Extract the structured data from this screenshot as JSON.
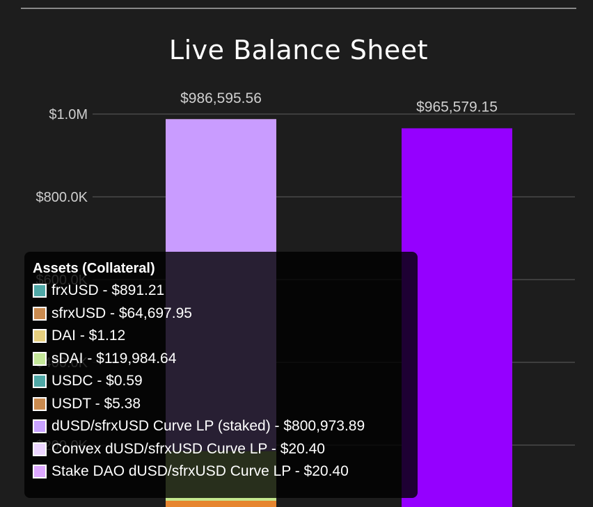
{
  "chart_data": {
    "type": "bar",
    "title": "Live Balance Sheet",
    "yticks": [
      "$1.0M",
      "$800.0K",
      "$600.0K",
      "$400.0K",
      "$200.0K"
    ],
    "ytick_values": [
      1000000,
      800000,
      600000,
      400000,
      200000
    ],
    "ylim": [
      0,
      1000000
    ],
    "grid": true,
    "bars": [
      {
        "total_label": "$986,595.56",
        "total": 986595.56,
        "stack": [
          {
            "name": "frxUSD",
            "value": 891.21,
            "color": "#4bbfbf"
          },
          {
            "name": "sfrxUSD",
            "value": 64697.95,
            "color": "#e6852f"
          },
          {
            "name": "DAI",
            "value": 1.12,
            "color": "#ebcd7a"
          },
          {
            "name": "sDAI",
            "value": 119984.64,
            "color": "#c5e88e"
          },
          {
            "name": "USDC",
            "value": 0.59,
            "color": "#4bbfbf"
          },
          {
            "name": "USDT",
            "value": 5.38,
            "color": "#e6852f"
          },
          {
            "name": "dUSD/sfrxUSD Curve LP (staked)",
            "value": 800973.89,
            "color": "#c99cff"
          },
          {
            "name": "Convex dUSD/sfrxUSD Curve LP",
            "value": 20.4,
            "color": "#edd6ff"
          },
          {
            "name": "Stake DAO dUSD/sfrxUSD Curve LP",
            "value": 20.4,
            "color": "#dfa5ff"
          }
        ]
      },
      {
        "total_label": "$965,579.15",
        "total": 965579.15,
        "stack": [
          {
            "name": "",
            "value": 965579.15,
            "color": "#9500ff"
          }
        ]
      }
    ]
  },
  "tooltip": {
    "title": "Assets (Collateral)",
    "items": [
      {
        "label": "frxUSD - $891.21",
        "color": "#4fa7a6"
      },
      {
        "label": "sfrxUSD - $64,697.95",
        "color": "#c98a4f"
      },
      {
        "label": "DAI - $1.12",
        "color": "#e6cf7f"
      },
      {
        "label": "sDAI - $119,984.64",
        "color": "#c4e79a"
      },
      {
        "label": "USDC - $0.59",
        "color": "#4fa7a6"
      },
      {
        "label": "USDT - $5.38",
        "color": "#c98a4f"
      },
      {
        "label": "dUSD/sfrxUSD Curve LP (staked) - $800,973.89",
        "color": "#c9a3ff"
      },
      {
        "label": "Convex dUSD/sfrxUSD Curve LP - $20.40",
        "color": "#ecd6ff"
      },
      {
        "label": "Stake DAO dUSD/sfrxUSD Curve LP - $20.40",
        "color": "#dda8ff"
      }
    ]
  }
}
